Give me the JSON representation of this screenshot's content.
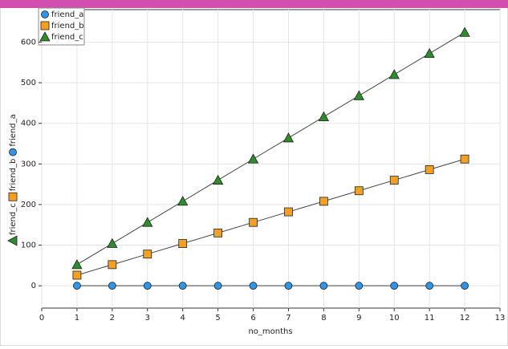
{
  "chart_data": {
    "type": "line",
    "x_label": "no_months",
    "x": [
      1,
      2,
      3,
      4,
      5,
      6,
      7,
      8,
      9,
      10,
      11,
      12
    ],
    "series": [
      {
        "name": "friend_a",
        "color": "#2f95e8",
        "marker": "circle",
        "values": [
          0,
          0,
          0,
          0,
          0,
          0,
          0,
          0,
          0,
          0,
          0,
          0
        ]
      },
      {
        "name": "friend_b",
        "color": "#f5a020",
        "marker": "square",
        "values": [
          26,
          52,
          78,
          104,
          130,
          156,
          182,
          208,
          234,
          260,
          286,
          312
        ]
      },
      {
        "name": "friend_c",
        "color": "#2e8b2e",
        "marker": "triangle",
        "values": [
          52,
          104,
          156,
          208,
          260,
          312,
          364,
          416,
          468,
          520,
          572,
          624
        ]
      }
    ],
    "xlim": [
      0,
      13
    ],
    "xticks": [
      0,
      1,
      2,
      3,
      4,
      5,
      6,
      7,
      8,
      9,
      10,
      11,
      12,
      13
    ],
    "ylim": [
      -55,
      680
    ],
    "yticks": [
      0,
      100,
      200,
      300,
      400,
      500,
      600
    ],
    "grid": true,
    "legend": "upper left"
  }
}
